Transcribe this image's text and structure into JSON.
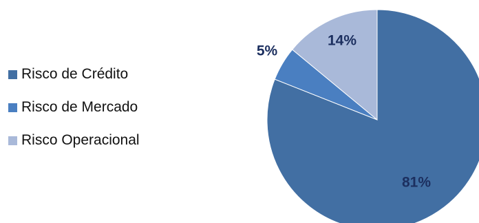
{
  "chart_data": {
    "type": "pie",
    "categories": [
      "Risco de Crédito",
      "Risco de Mercado",
      "Risco Operacional"
    ],
    "values": [
      81,
      5,
      14
    ],
    "data_labels": [
      "81%",
      "5%",
      "14%"
    ],
    "colors": [
      "#426fa3",
      "#4a7fc1",
      "#a9b9d9"
    ],
    "label_color": "#1c2f5f",
    "legend_position": "left",
    "start_angle": "12 o'clock",
    "direction": "clockwise"
  }
}
